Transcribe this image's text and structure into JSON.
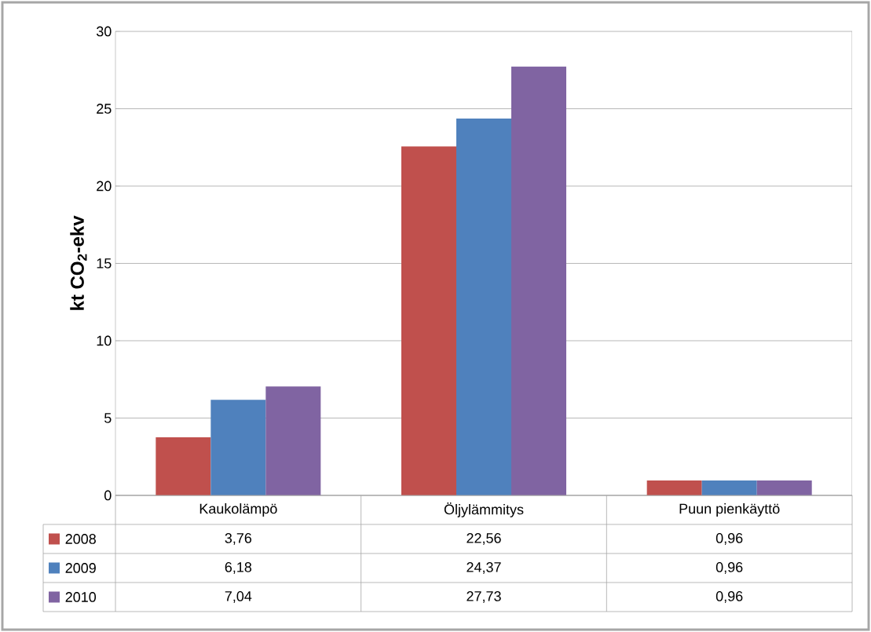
{
  "chart_data": {
    "type": "bar",
    "ylabel": "kt CO$_{2}$-ekv",
    "categories": [
      "Kaukolämpö",
      "Öljylämmitys",
      "Puun pienkäyttö"
    ],
    "series": [
      {
        "name": "2008",
        "color": "#c0504d",
        "values": [
          3.76,
          22.56,
          0.96
        ],
        "value_labels": [
          "3,76",
          "22,56",
          "0,96"
        ]
      },
      {
        "name": "2009",
        "color": "#4f81bd",
        "values": [
          6.18,
          24.37,
          0.96
        ],
        "value_labels": [
          "6,18",
          "24,37",
          "0,96"
        ]
      },
      {
        "name": "2010",
        "color": "#8064a2",
        "values": [
          7.04,
          27.73,
          0.96
        ],
        "value_labels": [
          "7,04",
          "27,73",
          "0,96"
        ]
      }
    ],
    "ylim": [
      0,
      30
    ],
    "yticks": [
      0,
      5,
      10,
      15,
      20,
      25,
      30
    ],
    "grid": "y",
    "legend": "bottom"
  }
}
